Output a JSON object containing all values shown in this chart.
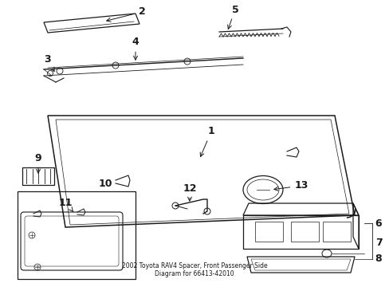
{
  "title": "2002 Toyota RAV4 Spacer, Front Passenger Side\nDiagram for 66413-42010",
  "bg_color": "#ffffff",
  "line_color": "#1a1a1a",
  "figsize": [
    4.89,
    3.6
  ],
  "dpi": 100
}
